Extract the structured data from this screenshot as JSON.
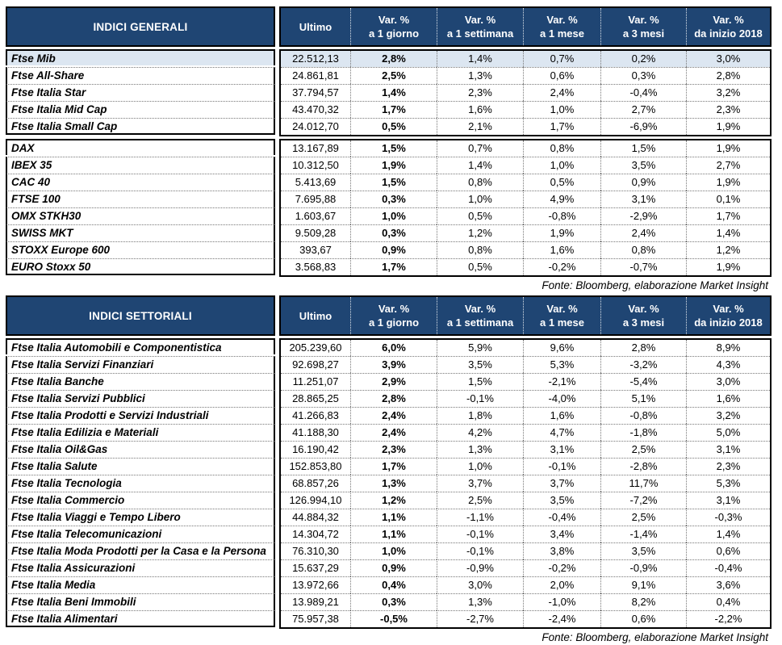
{
  "colors": {
    "header_navy": "#1F4573",
    "highlight_blue": "#DCE6F1"
  },
  "columns": {
    "ultimo": "Ultimo",
    "var_cols": [
      {
        "line1": "Var. %",
        "line2": "a 1 giorno"
      },
      {
        "line1": "Var. %",
        "line2": "a 1 settimana"
      },
      {
        "line1": "Var. %",
        "line2": "a 1 mese"
      },
      {
        "line1": "Var. %",
        "line2": "a 3 mesi"
      },
      {
        "line1": "Var. %",
        "line2": "da inizio 2018"
      }
    ]
  },
  "source_note": "Fonte: Bloomberg, elaborazione Market Insight",
  "tables": [
    {
      "title": "INDICI GENERALI",
      "groups": [
        {
          "rows": [
            {
              "name": "Ftse Mib",
              "highlight": true,
              "values": [
                "22.512,13",
                "2,8%",
                "1,4%",
                "0,7%",
                "0,2%",
                "3,0%"
              ]
            },
            {
              "name": "Ftse All-Share",
              "values": [
                "24.861,81",
                "2,5%",
                "1,3%",
                "0,6%",
                "0,3%",
                "2,8%"
              ]
            },
            {
              "name": "Ftse Italia Star",
              "values": [
                "37.794,57",
                "1,4%",
                "2,3%",
                "2,4%",
                "-0,4%",
                "3,2%"
              ]
            },
            {
              "name": "Ftse Italia Mid Cap",
              "values": [
                "43.470,32",
                "1,7%",
                "1,6%",
                "1,0%",
                "2,7%",
                "2,3%"
              ]
            },
            {
              "name": "Ftse Italia Small Cap",
              "values": [
                "24.012,70",
                "0,5%",
                "2,1%",
                "1,7%",
                "-6,9%",
                "1,9%"
              ]
            }
          ]
        },
        {
          "rows": [
            {
              "name": "DAX",
              "values": [
                "13.167,89",
                "1,5%",
                "0,7%",
                "0,8%",
                "1,5%",
                "1,9%"
              ]
            },
            {
              "name": "IBEX 35",
              "values": [
                "10.312,50",
                "1,9%",
                "1,4%",
                "1,0%",
                "3,5%",
                "2,7%"
              ]
            },
            {
              "name": "CAC 40",
              "values": [
                "5.413,69",
                "1,5%",
                "0,8%",
                "0,5%",
                "0,9%",
                "1,9%"
              ]
            },
            {
              "name": "FTSE 100",
              "values": [
                "7.695,88",
                "0,3%",
                "1,0%",
                "4,9%",
                "3,1%",
                "0,1%"
              ]
            },
            {
              "name": "OMX STKH30",
              "values": [
                "1.603,67",
                "1,0%",
                "0,5%",
                "-0,8%",
                "-2,9%",
                "1,7%"
              ]
            },
            {
              "name": "SWISS MKT",
              "values": [
                "9.509,28",
                "0,3%",
                "1,2%",
                "1,9%",
                "2,4%",
                "1,4%"
              ]
            },
            {
              "name": "STOXX Europe 600",
              "values": [
                "393,67",
                "0,9%",
                "0,8%",
                "1,6%",
                "0,8%",
                "1,2%"
              ]
            },
            {
              "name": "EURO Stoxx 50",
              "values": [
                "3.568,83",
                "1,7%",
                "0,5%",
                "-0,2%",
                "-0,7%",
                "1,9%"
              ]
            }
          ]
        }
      ]
    },
    {
      "title": "INDICI SETTORIALI",
      "groups": [
        {
          "rows": [
            {
              "name": "Ftse Italia Automobili e Componentistica",
              "values": [
                "205.239,60",
                "6,0%",
                "5,9%",
                "9,6%",
                "2,8%",
                "8,9%"
              ]
            },
            {
              "name": "Ftse Italia Servizi Finanziari",
              "values": [
                "92.698,27",
                "3,9%",
                "3,5%",
                "5,3%",
                "-3,2%",
                "4,3%"
              ]
            },
            {
              "name": "Ftse Italia Banche",
              "values": [
                "11.251,07",
                "2,9%",
                "1,5%",
                "-2,1%",
                "-5,4%",
                "3,0%"
              ]
            },
            {
              "name": "Ftse Italia Servizi Pubblici",
              "values": [
                "28.865,25",
                "2,8%",
                "-0,1%",
                "-4,0%",
                "5,1%",
                "1,6%"
              ]
            },
            {
              "name": "Ftse Italia Prodotti e Servizi Industriali",
              "values": [
                "41.266,83",
                "2,4%",
                "1,8%",
                "1,6%",
                "-0,8%",
                "3,2%"
              ]
            },
            {
              "name": "Ftse Italia Edilizia e Materiali",
              "values": [
                "41.188,30",
                "2,4%",
                "4,2%",
                "4,7%",
                "-1,8%",
                "5,0%"
              ]
            },
            {
              "name": "Ftse Italia Oil&Gas",
              "values": [
                "16.190,42",
                "2,3%",
                "1,3%",
                "3,1%",
                "2,5%",
                "3,1%"
              ]
            },
            {
              "name": "Ftse Italia Salute",
              "values": [
                "152.853,80",
                "1,7%",
                "1,0%",
                "-0,1%",
                "-2,8%",
                "2,3%"
              ]
            },
            {
              "name": "Ftse Italia Tecnologia",
              "values": [
                "68.857,26",
                "1,3%",
                "3,7%",
                "3,7%",
                "11,7%",
                "5,3%"
              ]
            },
            {
              "name": "Ftse Italia Commercio",
              "values": [
                "126.994,10",
                "1,2%",
                "2,5%",
                "3,5%",
                "-7,2%",
                "3,1%"
              ]
            },
            {
              "name": "Ftse Italia Viaggi e Tempo Libero",
              "values": [
                "44.884,32",
                "1,1%",
                "-1,1%",
                "-0,4%",
                "2,5%",
                "-0,3%"
              ]
            },
            {
              "name": "Ftse Italia Telecomunicazioni",
              "values": [
                "14.304,72",
                "1,1%",
                "-0,1%",
                "3,4%",
                "-1,4%",
                "1,4%"
              ]
            },
            {
              "name": "Ftse Italia Moda Prodotti per la Casa e la Persona",
              "values": [
                "76.310,30",
                "1,0%",
                "-0,1%",
                "3,8%",
                "3,5%",
                "0,6%"
              ]
            },
            {
              "name": "Ftse Italia Assicurazioni",
              "values": [
                "15.637,29",
                "0,9%",
                "-0,9%",
                "-0,2%",
                "-0,9%",
                "-0,4%"
              ]
            },
            {
              "name": "Ftse Italia Media",
              "values": [
                "13.972,66",
                "0,4%",
                "3,0%",
                "2,0%",
                "9,1%",
                "3,6%"
              ]
            },
            {
              "name": "Ftse Italia Beni Immobili",
              "values": [
                "13.989,21",
                "0,3%",
                "1,3%",
                "-1,0%",
                "8,2%",
                "0,4%"
              ]
            },
            {
              "name": "Ftse Italia Alimentari",
              "values": [
                "75.957,38",
                "-0,5%",
                "-2,7%",
                "-2,4%",
                "0,6%",
                "-2,2%"
              ]
            }
          ]
        }
      ]
    }
  ]
}
